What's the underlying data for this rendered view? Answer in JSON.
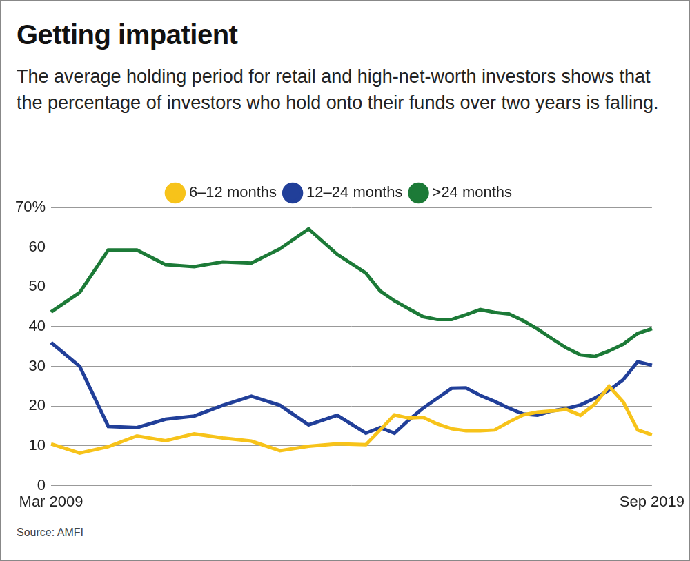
{
  "chart_data": {
    "type": "line",
    "title": "Getting impatient",
    "subtitle": "The average holding period for retail and high-net-worth investors shows that the percentage of investors who hold onto their funds over two years is falling.",
    "source": "Source: AMFI",
    "categories": [
      "Mar 2009",
      null,
      null,
      null,
      null,
      null,
      null,
      null,
      null,
      null,
      null,
      null,
      null,
      null,
      null,
      null,
      null,
      null,
      null,
      null,
      null,
      null,
      null,
      null,
      null,
      null,
      null,
      null,
      null,
      null,
      null,
      null,
      null,
      null,
      null,
      null,
      null,
      null,
      null,
      null,
      null,
      null,
      "Sep 2019"
    ],
    "series": [
      {
        "name": "6–12 months",
        "color": "#f7c31a",
        "values": [
          10.5,
          null,
          8.2,
          null,
          9.8,
          null,
          12.5,
          null,
          11.3,
          null,
          13,
          null,
          12,
          null,
          11.2,
          null,
          8.8,
          null,
          9.9,
          null,
          10.5,
          null,
          10.3,
          14,
          17.8,
          17,
          17.2,
          15.5,
          14.3,
          13.8,
          13.8,
          14,
          16,
          17.8,
          18.5,
          18.8,
          19.2,
          17.7,
          20.5,
          25,
          21,
          14,
          12.8
        ]
      },
      {
        "name": "12–24 months",
        "color": "#213f99",
        "values": [
          36,
          null,
          30,
          null,
          14.9,
          null,
          14.6,
          null,
          16.7,
          null,
          17.5,
          null,
          20.2,
          null,
          22.5,
          null,
          20.2,
          null,
          15.3,
          null,
          17.7,
          null,
          13.2,
          14.6,
          13.2,
          16.5,
          19.5,
          22,
          24.5,
          24.6,
          22.7,
          21.2,
          19.5,
          18,
          17.7,
          18.8,
          19.4,
          20.3,
          22,
          24,
          26.7,
          31.2,
          30.3
        ]
      },
      {
        "name": ">24 months",
        "color": "#1c7a37",
        "values": [
          43.7,
          null,
          48.6,
          null,
          59.3,
          null,
          59.3,
          null,
          55.6,
          null,
          55.1,
          null,
          56.3,
          null,
          56,
          null,
          59.6,
          null,
          64.6,
          null,
          58.2,
          null,
          53.5,
          49,
          46.5,
          44.5,
          42.5,
          41.8,
          41.8,
          43,
          44.3,
          43.6,
          43.2,
          41.5,
          39.4,
          37,
          34.7,
          32.9,
          32.5,
          33.9,
          35.6,
          38.3,
          39.5
        ]
      }
    ],
    "ylim": [
      0,
      70
    ],
    "yticks": [
      0,
      10,
      20,
      30,
      40,
      50,
      60,
      {
        "value": 70,
        "label": "70%"
      }
    ],
    "grid": true,
    "legend": "top"
  }
}
